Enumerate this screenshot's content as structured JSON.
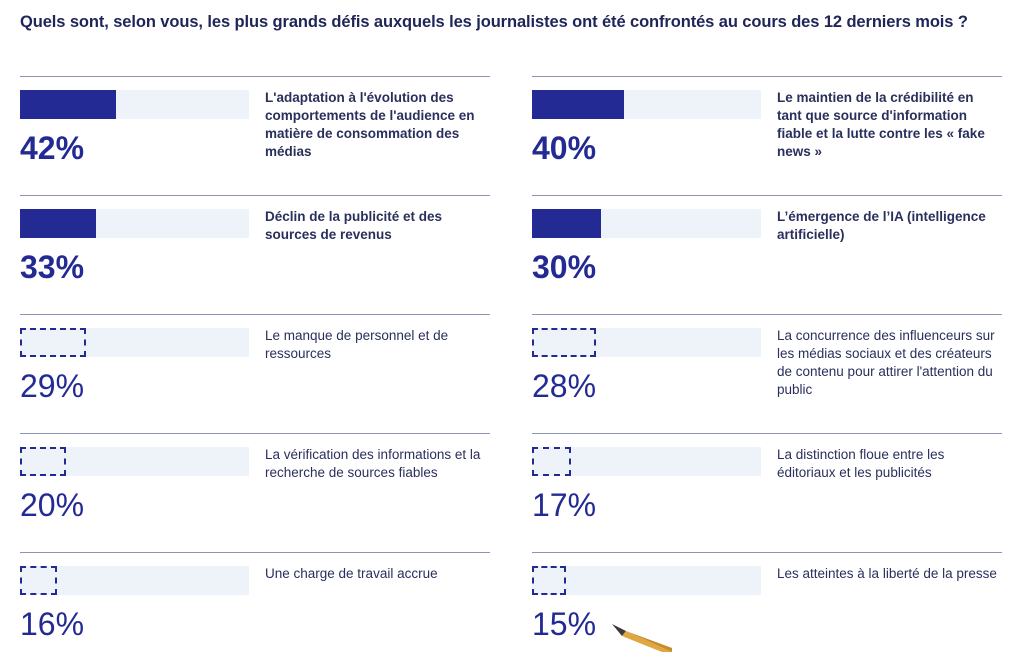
{
  "title": "Quels sont, selon vous, les plus grands défis auxquels les journalistes ont été confrontés au cours des 12 derniers mois ?",
  "colors": {
    "accent": "#232a94",
    "track": "#eef2f9",
    "text": "#1f2558",
    "divider": "#8f93b5"
  },
  "chart_data": {
    "type": "bar",
    "title": "Quels sont, selon vous, les plus grands défis auxquels les journalistes ont été confrontés au cours des 12 derniers mois ?",
    "unit": "%",
    "ylim": [
      0,
      100
    ],
    "items": [
      {
        "label": "L'adaptation à l'évolution des comportements de l'audience en matière de consommation des médias",
        "value": 42,
        "display": "42%",
        "emphasis": true,
        "column": "left"
      },
      {
        "label": "Le maintien de la crédibilité en tant que source d'information fiable et la lutte contre les « fake news »",
        "value": 40,
        "display": "40%",
        "emphasis": true,
        "column": "right"
      },
      {
        "label": "Déclin de la publicité et des sources de revenus",
        "value": 33,
        "display": "33%",
        "emphasis": true,
        "column": "left"
      },
      {
        "label": "L’émergence de l’IA (intelligence artificielle)",
        "value": 30,
        "display": "30%",
        "emphasis": true,
        "column": "right"
      },
      {
        "label": "Le manque de personnel et de ressources",
        "value": 29,
        "display": "29%",
        "emphasis": false,
        "column": "left"
      },
      {
        "label": "La concurrence des influenceurs sur les médias sociaux et des créateurs de contenu pour attirer l'attention du public",
        "value": 28,
        "display": "28%",
        "emphasis": false,
        "column": "right"
      },
      {
        "label": "La vérification des informations et la recherche de sources fiables",
        "value": 20,
        "display": "20%",
        "emphasis": false,
        "column": "left"
      },
      {
        "label": "La distinction floue entre les éditoriaux et les publicités",
        "value": 17,
        "display": "17%",
        "emphasis": false,
        "column": "right"
      },
      {
        "label": "Une charge de travail accrue",
        "value": 16,
        "display": "16%",
        "emphasis": false,
        "column": "left"
      },
      {
        "label": "Les atteintes à la liberté de la presse",
        "value": 15,
        "display": "15%",
        "emphasis": false,
        "column": "right"
      }
    ]
  },
  "decorations": {
    "pencil_icon": "pencil-icon"
  }
}
